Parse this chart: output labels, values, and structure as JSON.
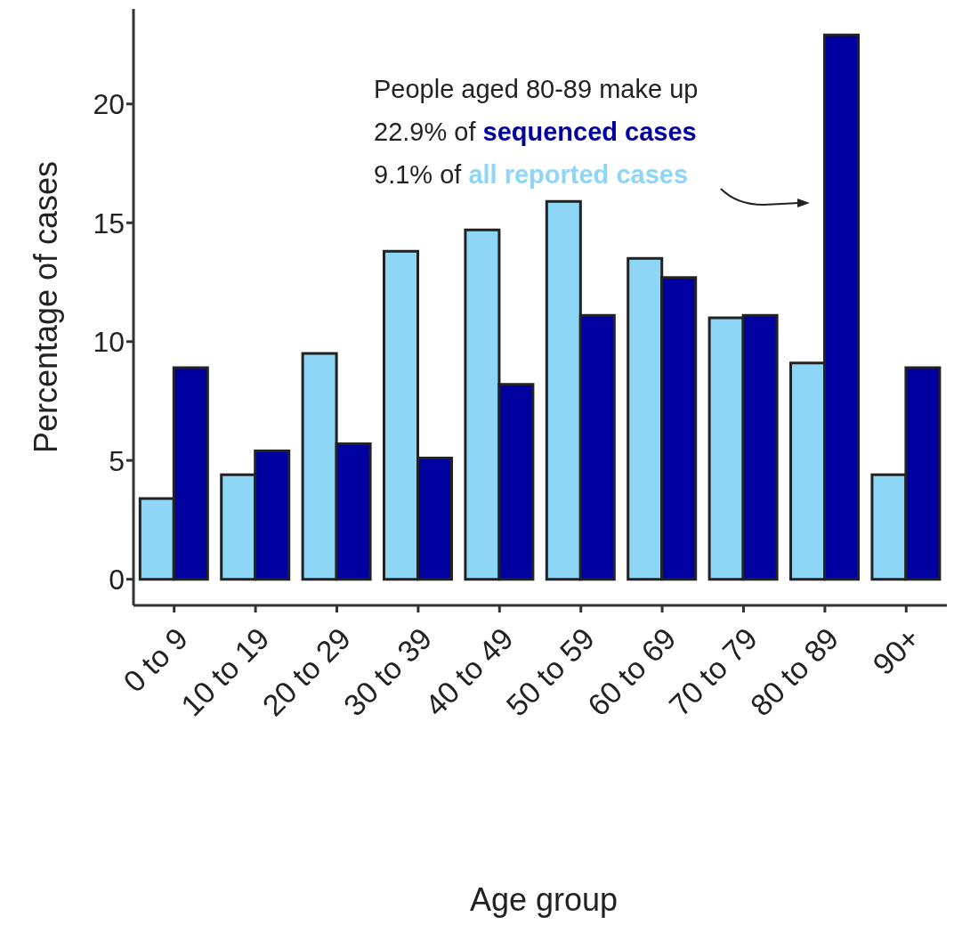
{
  "chart_data": {
    "type": "bar",
    "xlabel": "Age group",
    "ylabel": "Percentage of cases",
    "categories": [
      "0 to 9",
      "10 to 19",
      "20 to 29",
      "30 to 39",
      "40 to 49",
      "50 to 59",
      "60 to 69",
      "70 to 79",
      "80 to 89",
      "90+"
    ],
    "series": [
      {
        "name": "all reported cases",
        "color": "#8dd6f5",
        "values": [
          3.4,
          4.4,
          9.5,
          13.8,
          14.7,
          15.9,
          13.5,
          11.0,
          9.1,
          4.4
        ]
      },
      {
        "name": "sequenced cases",
        "color": "#0000a0",
        "values": [
          8.9,
          5.4,
          5.7,
          5.1,
          8.2,
          11.1,
          12.7,
          11.1,
          22.9,
          8.9
        ]
      }
    ],
    "annotations": [
      "People aged 80-89 make up",
      "22.9% of",
      "9.1% of"
    ],
    "ylim": [
      -1.1,
      24
    ],
    "yticks": [
      0,
      5,
      10,
      15,
      20
    ]
  }
}
